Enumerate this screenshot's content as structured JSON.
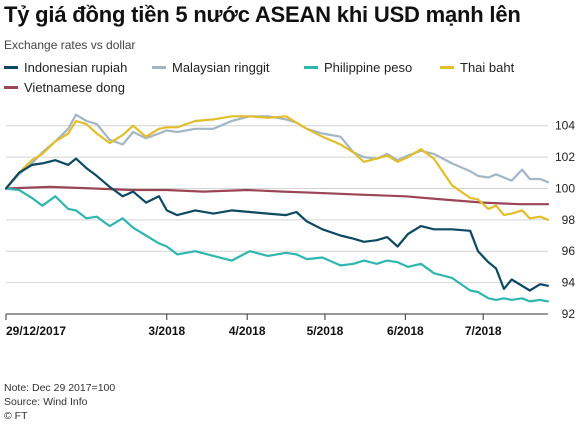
{
  "header": {
    "title": "Tỷ giá đồng tiền 5 nước ASEAN khi USD mạnh lên",
    "subtitle": "Exchange rates vs dollar"
  },
  "footer": {
    "note": "Note: Dec 29 2017=100",
    "source": "Source: Wind Info",
    "credit": "© FT"
  },
  "chart_data": {
    "type": "line",
    "ylim": [
      92,
      105
    ],
    "yticks": [
      92,
      94,
      96,
      98,
      100,
      102,
      104
    ],
    "ytick_labels": [
      "92",
      "94",
      "96",
      "98",
      "100",
      "102",
      "104"
    ],
    "x_range": [
      "2017-12-29",
      "2018-07-26"
    ],
    "x_ticks": [
      {
        "label": "29/12/2017",
        "date": "2017-12-29"
      },
      {
        "label": "3/2018",
        "date": "2018-03-01"
      },
      {
        "label": "4/2018",
        "date": "2018-04-01"
      },
      {
        "label": "5/2018",
        "date": "2018-05-01"
      },
      {
        "label": "6/2018",
        "date": "2018-06-01"
      },
      {
        "label": "7/2018",
        "date": "2018-07-01"
      }
    ],
    "series": [
      {
        "name": "Indonesian rupiah",
        "color": "#0d4a62",
        "points": [
          [
            "2017-12-29",
            100.0
          ],
          [
            "2018-01-03",
            101.0
          ],
          [
            "2018-01-08",
            101.5
          ],
          [
            "2018-01-12",
            101.6
          ],
          [
            "2018-01-17",
            101.8
          ],
          [
            "2018-01-22",
            101.5
          ],
          [
            "2018-01-25",
            101.9
          ],
          [
            "2018-01-29",
            101.3
          ],
          [
            "2018-02-02",
            100.8
          ],
          [
            "2018-02-07",
            100.1
          ],
          [
            "2018-02-12",
            99.5
          ],
          [
            "2018-02-16",
            99.8
          ],
          [
            "2018-02-21",
            99.1
          ],
          [
            "2018-02-26",
            99.5
          ],
          [
            "2018-03-01",
            98.6
          ],
          [
            "2018-03-05",
            98.3
          ],
          [
            "2018-03-12",
            98.6
          ],
          [
            "2018-03-19",
            98.4
          ],
          [
            "2018-03-26",
            98.6
          ],
          [
            "2018-04-02",
            98.5
          ],
          [
            "2018-04-09",
            98.4
          ],
          [
            "2018-04-16",
            98.3
          ],
          [
            "2018-04-20",
            98.5
          ],
          [
            "2018-04-24",
            97.9
          ],
          [
            "2018-04-30",
            97.4
          ],
          [
            "2018-05-07",
            97.0
          ],
          [
            "2018-05-12",
            96.8
          ],
          [
            "2018-05-16",
            96.6
          ],
          [
            "2018-05-21",
            96.7
          ],
          [
            "2018-05-25",
            96.9
          ],
          [
            "2018-05-29",
            96.3
          ],
          [
            "2018-06-02",
            97.1
          ],
          [
            "2018-06-07",
            97.6
          ],
          [
            "2018-06-12",
            97.4
          ],
          [
            "2018-06-19",
            97.4
          ],
          [
            "2018-06-26",
            97.3
          ],
          [
            "2018-06-29",
            96.0
          ],
          [
            "2018-07-03",
            95.3
          ],
          [
            "2018-07-06",
            94.9
          ],
          [
            "2018-07-09",
            93.6
          ],
          [
            "2018-07-12",
            94.2
          ],
          [
            "2018-07-16",
            93.8
          ],
          [
            "2018-07-19",
            93.5
          ],
          [
            "2018-07-23",
            93.9
          ],
          [
            "2018-07-26",
            93.8
          ]
        ]
      },
      {
        "name": "Malaysian ringgit",
        "color": "#a3b6c4",
        "points": [
          [
            "2017-12-29",
            100.0
          ],
          [
            "2018-01-03",
            100.9
          ],
          [
            "2018-01-08",
            101.6
          ],
          [
            "2018-01-12",
            102.3
          ],
          [
            "2018-01-17",
            103.0
          ],
          [
            "2018-01-22",
            103.8
          ],
          [
            "2018-01-25",
            104.7
          ],
          [
            "2018-01-29",
            104.3
          ],
          [
            "2018-02-02",
            104.1
          ],
          [
            "2018-02-07",
            103.1
          ],
          [
            "2018-02-12",
            102.8
          ],
          [
            "2018-02-16",
            103.6
          ],
          [
            "2018-02-21",
            103.2
          ],
          [
            "2018-02-26",
            103.5
          ],
          [
            "2018-03-01",
            103.7
          ],
          [
            "2018-03-05",
            103.6
          ],
          [
            "2018-03-12",
            103.8
          ],
          [
            "2018-03-19",
            103.8
          ],
          [
            "2018-03-26",
            104.3
          ],
          [
            "2018-04-02",
            104.6
          ],
          [
            "2018-04-09",
            104.6
          ],
          [
            "2018-04-16",
            104.4
          ],
          [
            "2018-04-20",
            104.2
          ],
          [
            "2018-04-24",
            103.8
          ],
          [
            "2018-04-30",
            103.5
          ],
          [
            "2018-05-07",
            103.3
          ],
          [
            "2018-05-12",
            102.3
          ],
          [
            "2018-05-16",
            102.0
          ],
          [
            "2018-05-21",
            101.9
          ],
          [
            "2018-05-25",
            102.2
          ],
          [
            "2018-05-29",
            101.8
          ],
          [
            "2018-06-02",
            102.1
          ],
          [
            "2018-06-07",
            102.4
          ],
          [
            "2018-06-12",
            102.2
          ],
          [
            "2018-06-19",
            101.6
          ],
          [
            "2018-06-26",
            101.1
          ],
          [
            "2018-06-29",
            100.8
          ],
          [
            "2018-07-03",
            100.7
          ],
          [
            "2018-07-06",
            100.9
          ],
          [
            "2018-07-09",
            100.7
          ],
          [
            "2018-07-12",
            100.5
          ],
          [
            "2018-07-16",
            101.2
          ],
          [
            "2018-07-19",
            100.6
          ],
          [
            "2018-07-23",
            100.6
          ],
          [
            "2018-07-26",
            100.4
          ]
        ]
      },
      {
        "name": "Philippine peso",
        "color": "#2fb6ae",
        "points": [
          [
            "2017-12-29",
            100.0
          ],
          [
            "2018-01-03",
            99.9
          ],
          [
            "2018-01-08",
            99.4
          ],
          [
            "2018-01-12",
            98.9
          ],
          [
            "2018-01-17",
            99.5
          ],
          [
            "2018-01-22",
            98.7
          ],
          [
            "2018-01-25",
            98.6
          ],
          [
            "2018-01-29",
            98.1
          ],
          [
            "2018-02-02",
            98.2
          ],
          [
            "2018-02-07",
            97.6
          ],
          [
            "2018-02-12",
            98.1
          ],
          [
            "2018-02-16",
            97.5
          ],
          [
            "2018-02-21",
            97.0
          ],
          [
            "2018-02-26",
            96.5
          ],
          [
            "2018-03-01",
            96.3
          ],
          [
            "2018-03-05",
            95.8
          ],
          [
            "2018-03-12",
            96.0
          ],
          [
            "2018-03-19",
            95.7
          ],
          [
            "2018-03-26",
            95.4
          ],
          [
            "2018-04-02",
            96.0
          ],
          [
            "2018-04-09",
            95.7
          ],
          [
            "2018-04-16",
            95.9
          ],
          [
            "2018-04-20",
            95.8
          ],
          [
            "2018-04-24",
            95.5
          ],
          [
            "2018-04-30",
            95.6
          ],
          [
            "2018-05-07",
            95.1
          ],
          [
            "2018-05-12",
            95.2
          ],
          [
            "2018-05-16",
            95.4
          ],
          [
            "2018-05-21",
            95.2
          ],
          [
            "2018-05-25",
            95.4
          ],
          [
            "2018-05-29",
            95.3
          ],
          [
            "2018-06-02",
            95.0
          ],
          [
            "2018-06-07",
            95.2
          ],
          [
            "2018-06-12",
            94.6
          ],
          [
            "2018-06-19",
            94.3
          ],
          [
            "2018-06-26",
            93.5
          ],
          [
            "2018-06-29",
            93.4
          ],
          [
            "2018-07-03",
            93.0
          ],
          [
            "2018-07-06",
            92.9
          ],
          [
            "2018-07-09",
            93.0
          ],
          [
            "2018-07-12",
            92.9
          ],
          [
            "2018-07-16",
            93.0
          ],
          [
            "2018-07-19",
            92.8
          ],
          [
            "2018-07-23",
            92.9
          ],
          [
            "2018-07-26",
            92.8
          ]
        ]
      },
      {
        "name": "Thai baht",
        "color": "#e3be2b",
        "points": [
          [
            "2017-12-29",
            100.0
          ],
          [
            "2018-01-03",
            101.0
          ],
          [
            "2018-01-08",
            101.8
          ],
          [
            "2018-01-12",
            102.2
          ],
          [
            "2018-01-17",
            103.0
          ],
          [
            "2018-01-22",
            103.5
          ],
          [
            "2018-01-25",
            104.3
          ],
          [
            "2018-01-29",
            104.1
          ],
          [
            "2018-02-02",
            103.5
          ],
          [
            "2018-02-07",
            102.9
          ],
          [
            "2018-02-12",
            103.4
          ],
          [
            "2018-02-16",
            104.0
          ],
          [
            "2018-02-21",
            103.3
          ],
          [
            "2018-02-26",
            103.8
          ],
          [
            "2018-03-01",
            103.9
          ],
          [
            "2018-03-05",
            103.9
          ],
          [
            "2018-03-12",
            104.3
          ],
          [
            "2018-03-19",
            104.4
          ],
          [
            "2018-03-26",
            104.6
          ],
          [
            "2018-04-02",
            104.6
          ],
          [
            "2018-04-09",
            104.5
          ],
          [
            "2018-04-16",
            104.6
          ],
          [
            "2018-04-20",
            104.2
          ],
          [
            "2018-04-24",
            103.8
          ],
          [
            "2018-04-30",
            103.3
          ],
          [
            "2018-05-07",
            102.8
          ],
          [
            "2018-05-12",
            102.3
          ],
          [
            "2018-05-16",
            101.7
          ],
          [
            "2018-05-21",
            101.9
          ],
          [
            "2018-05-25",
            102.1
          ],
          [
            "2018-05-29",
            101.7
          ],
          [
            "2018-06-02",
            102.0
          ],
          [
            "2018-06-07",
            102.5
          ],
          [
            "2018-06-12",
            101.9
          ],
          [
            "2018-06-19",
            100.2
          ],
          [
            "2018-06-26",
            99.4
          ],
          [
            "2018-06-29",
            99.3
          ],
          [
            "2018-07-03",
            98.7
          ],
          [
            "2018-07-06",
            98.9
          ],
          [
            "2018-07-09",
            98.3
          ],
          [
            "2018-07-12",
            98.4
          ],
          [
            "2018-07-16",
            98.6
          ],
          [
            "2018-07-19",
            98.1
          ],
          [
            "2018-07-23",
            98.2
          ],
          [
            "2018-07-26",
            98.0
          ]
        ]
      },
      {
        "name": "Vietnamese dong",
        "color": "#9c4556",
        "points": [
          [
            "2017-12-29",
            100.0
          ],
          [
            "2018-01-15",
            100.1
          ],
          [
            "2018-02-01",
            100.0
          ],
          [
            "2018-02-15",
            99.9
          ],
          [
            "2018-03-01",
            99.9
          ],
          [
            "2018-03-15",
            99.8
          ],
          [
            "2018-04-01",
            99.9
          ],
          [
            "2018-04-15",
            99.8
          ],
          [
            "2018-05-01",
            99.7
          ],
          [
            "2018-05-15",
            99.6
          ],
          [
            "2018-06-01",
            99.5
          ],
          [
            "2018-06-15",
            99.3
          ],
          [
            "2018-07-01",
            99.1
          ],
          [
            "2018-07-15",
            99.0
          ],
          [
            "2018-07-26",
            99.0
          ]
        ]
      }
    ]
  }
}
